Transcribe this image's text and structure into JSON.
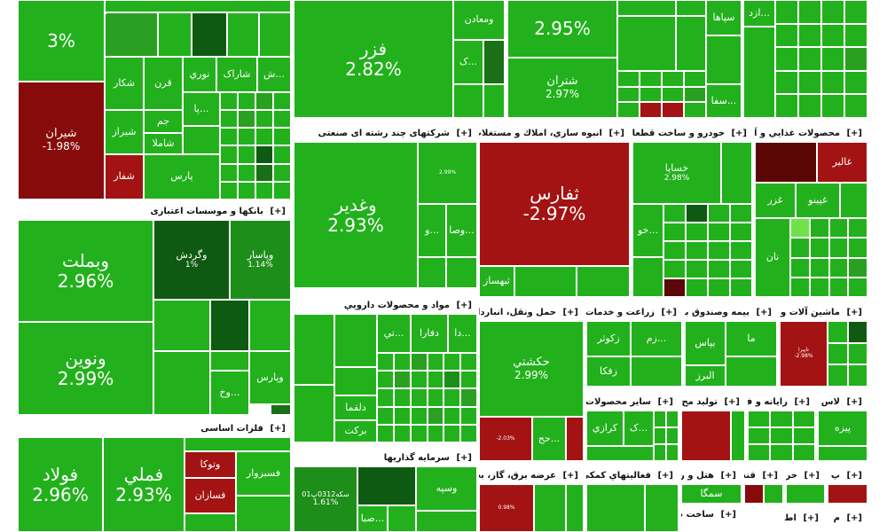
{
  "sectors": {
    "banks": {
      "title": "بانکها و موسسات اعتباری",
      "plus": "[+]"
    },
    "metals": {
      "title": "فلزات اساسی",
      "plus": "[+]"
    },
    "holdings": {
      "title": "شرکتهای چند رشته ای صنعتی",
      "plus": "[+]"
    },
    "realestate": {
      "title": "انبوه سازي، املاك و مستغلات",
      "plus": "[+]"
    },
    "auto": {
      "title": "خودرو و ساخت قطعات",
      "plus": "[+]"
    },
    "food": {
      "title": "محصولات غذايي و آ",
      "plus": "[+]"
    },
    "pharma": {
      "title": "مواد و محصولات دارويي",
      "plus": "[+]"
    },
    "transport": {
      "title": "حمل ونقل، انبارداري",
      "plus": "[+]"
    },
    "agri": {
      "title": "زراعت و خدمات",
      "plus": "[+]"
    },
    "insurance": {
      "title": "بيمه وصندوق باز",
      "plus": "[+]"
    },
    "machinery": {
      "title": "ماشين آلات و",
      "plus": "[+]"
    },
    "invest": {
      "title": "سرمايه گذاريها",
      "plus": "[+]"
    },
    "utility": {
      "title": "عرضه برق، گاز، بخار",
      "plus": "[+]"
    },
    "support": {
      "title": "فعاليتهاي كمكي",
      "plus": "[+]"
    },
    "otherproducts": {
      "title": "ساير محصولات",
      "plus": "[+]"
    },
    "produce": {
      "title": "توليد مح",
      "plus": "[+]"
    },
    "computer": {
      "title": "رايانه و ف",
      "plus": "[+]"
    },
    "glass": {
      "title": "لاس",
      "plus": "[+]"
    },
    "hotel": {
      "title": "هتل و ر",
      "plus": "[+]"
    },
    "sugar": {
      "title": "قند",
      "plus": "[+]"
    },
    "retail": {
      "title": "خر",
      "plus": "[+]"
    },
    "paper": {
      "title": "پ",
      "plus": "[+]"
    },
    "build": {
      "title": "ساخت م",
      "plus": "[+]"
    },
    "tex": {
      "title": "اط",
      "plus": "[+]"
    },
    "misc": {
      "title": "م",
      "plus": "[+]"
    }
  },
  "tiles": {
    "top_pct": "3%",
    "shiran": {
      "name": "شيران",
      "pct": "-1.98%"
    },
    "chekar": "شكار",
    "qeran": "قرن",
    "nouri": "نوري",
    "sharak": "شاراک",
    "sh_dots": "ش...",
    "shiraz": "شيراز",
    "jam": "جم",
    "pa_dots": "پا...",
    "shamla": "شاملا",
    "pars": "پارس",
    "shefar": "شفار",
    "fazar": {
      "name": "فزر",
      "pct": "2.82%"
    },
    "vamaaden": "ومعادن",
    "k_dots": "ک...",
    "top_pct2": "2.95%",
    "shetran": {
      "name": "شتران",
      "pct": "2.97%"
    },
    "sepaha": "سپاها",
    "arad": "ازد...",
    "saf": "سفا...",
    "vabmelat": {
      "name": "وبملت",
      "pct": "2.96%"
    },
    "vagardesh": {
      "name": "وگردش",
      "pct": "1%"
    },
    "vapasar": {
      "name": "وپاسار",
      "pct": "1.14%"
    },
    "vanovin": {
      "name": "ونوين",
      "pct": "2.99%"
    },
    "vapars": "وپارس",
    "vokh": "وخ...",
    "foolad": {
      "name": "فولاد",
      "pct": "2.96%"
    },
    "fameli": {
      "name": "فملي",
      "pct": "2.93%"
    },
    "vatooka": "وتوكا",
    "fasabzvar": "فسبزوار",
    "fasazan": "فسازان",
    "vaghadir": {
      "name": "وغدير",
      "pct": "2.93%"
    },
    "vasaand": "وصا...",
    "vo": "و...",
    "shasta_pct": "2.99%",
    "sefares": {
      "name": "ثفارس",
      "pct": "-2.97%"
    },
    "tabhsaz": "ثبهساز",
    "khasapa": {
      "name": "خساپا",
      "pct": "2.98%"
    },
    "kho": "خو...",
    "ghalir": "غالير",
    "ghepino": "غپينو",
    "ghazar": "غزر",
    "nan": "نان",
    "dafra": "دفارا",
    "da": "دا...",
    "ti": "تي...",
    "dalgha": "دلقما",
    "barkat": "بركت",
    "hakeshti": {
      "name": "حكشتي",
      "pct": "2.99%"
    },
    "hah": "حح...",
    "hotaid_pct": "-2.03%",
    "zakosar": "زكوثر",
    "zafka": "زفكا",
    "zam": "زم...",
    "bapas": "بپاس",
    "alborz": "البرز",
    "ma": "ما",
    "tapira": {
      "name": "تاپيرا",
      "pct": "-2.98%"
    },
    "korazi": "كرازي",
    "k_dots2": "ک...",
    "piza": "پيزه",
    "vasepeh": "وسپه",
    "vsakht_pct": "1.61%",
    "vsakht": "سکه0312پ01",
    "saba": "صبا...",
    "samga": "سمگا",
    "pct_098": "0.98%"
  }
}
